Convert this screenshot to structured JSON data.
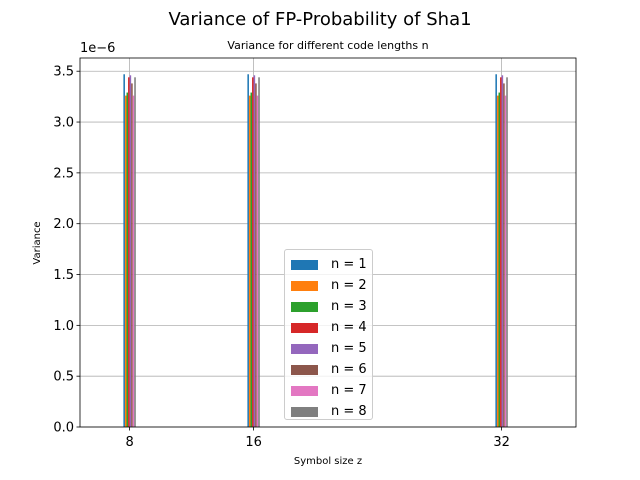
{
  "chart_data": {
    "type": "bar",
    "title": "Variance of FP-Probability of Sha1",
    "subtitle": "Variance for different code lengths n",
    "xlabel": "Symbol size z",
    "ylabel": "Variance",
    "y_multiplier": "1e−6",
    "x": [
      8,
      16,
      32
    ],
    "x_tick_labels": [
      "8",
      "16",
      "32"
    ],
    "xlim": [
      4.8,
      36.8
    ],
    "ylim": [
      0,
      3.63
    ],
    "y_ticks": [
      0,
      0.5,
      1.0,
      1.5,
      2.0,
      2.5,
      3.0,
      3.5
    ],
    "y_tick_labels": [
      "0.0",
      "0.5",
      "1.0",
      "1.5",
      "2.0",
      "2.5",
      "3.0",
      "3.5"
    ],
    "grid": true,
    "legend_position": "lower center",
    "series": [
      {
        "name": "n = 1",
        "color": "#1f77b4",
        "values": [
          3.47,
          3.47,
          3.47
        ]
      },
      {
        "name": "n = 2",
        "color": "#ff7f0e",
        "values": [
          3.26,
          3.26,
          3.26
        ]
      },
      {
        "name": "n = 3",
        "color": "#2ca02c",
        "values": [
          3.29,
          3.29,
          3.29
        ]
      },
      {
        "name": "n = 4",
        "color": "#d62728",
        "values": [
          3.44,
          3.44,
          3.44
        ]
      },
      {
        "name": "n = 5",
        "color": "#9467bd",
        "values": [
          3.46,
          3.46,
          3.46
        ]
      },
      {
        "name": "n = 6",
        "color": "#8c564b",
        "values": [
          3.38,
          3.38,
          3.38
        ]
      },
      {
        "name": "n = 7",
        "color": "#e377c2",
        "values": [
          3.26,
          3.26,
          3.26
        ]
      },
      {
        "name": "n = 8",
        "color": "#7f7f7f",
        "values": [
          3.44,
          3.44,
          3.44
        ]
      }
    ]
  }
}
